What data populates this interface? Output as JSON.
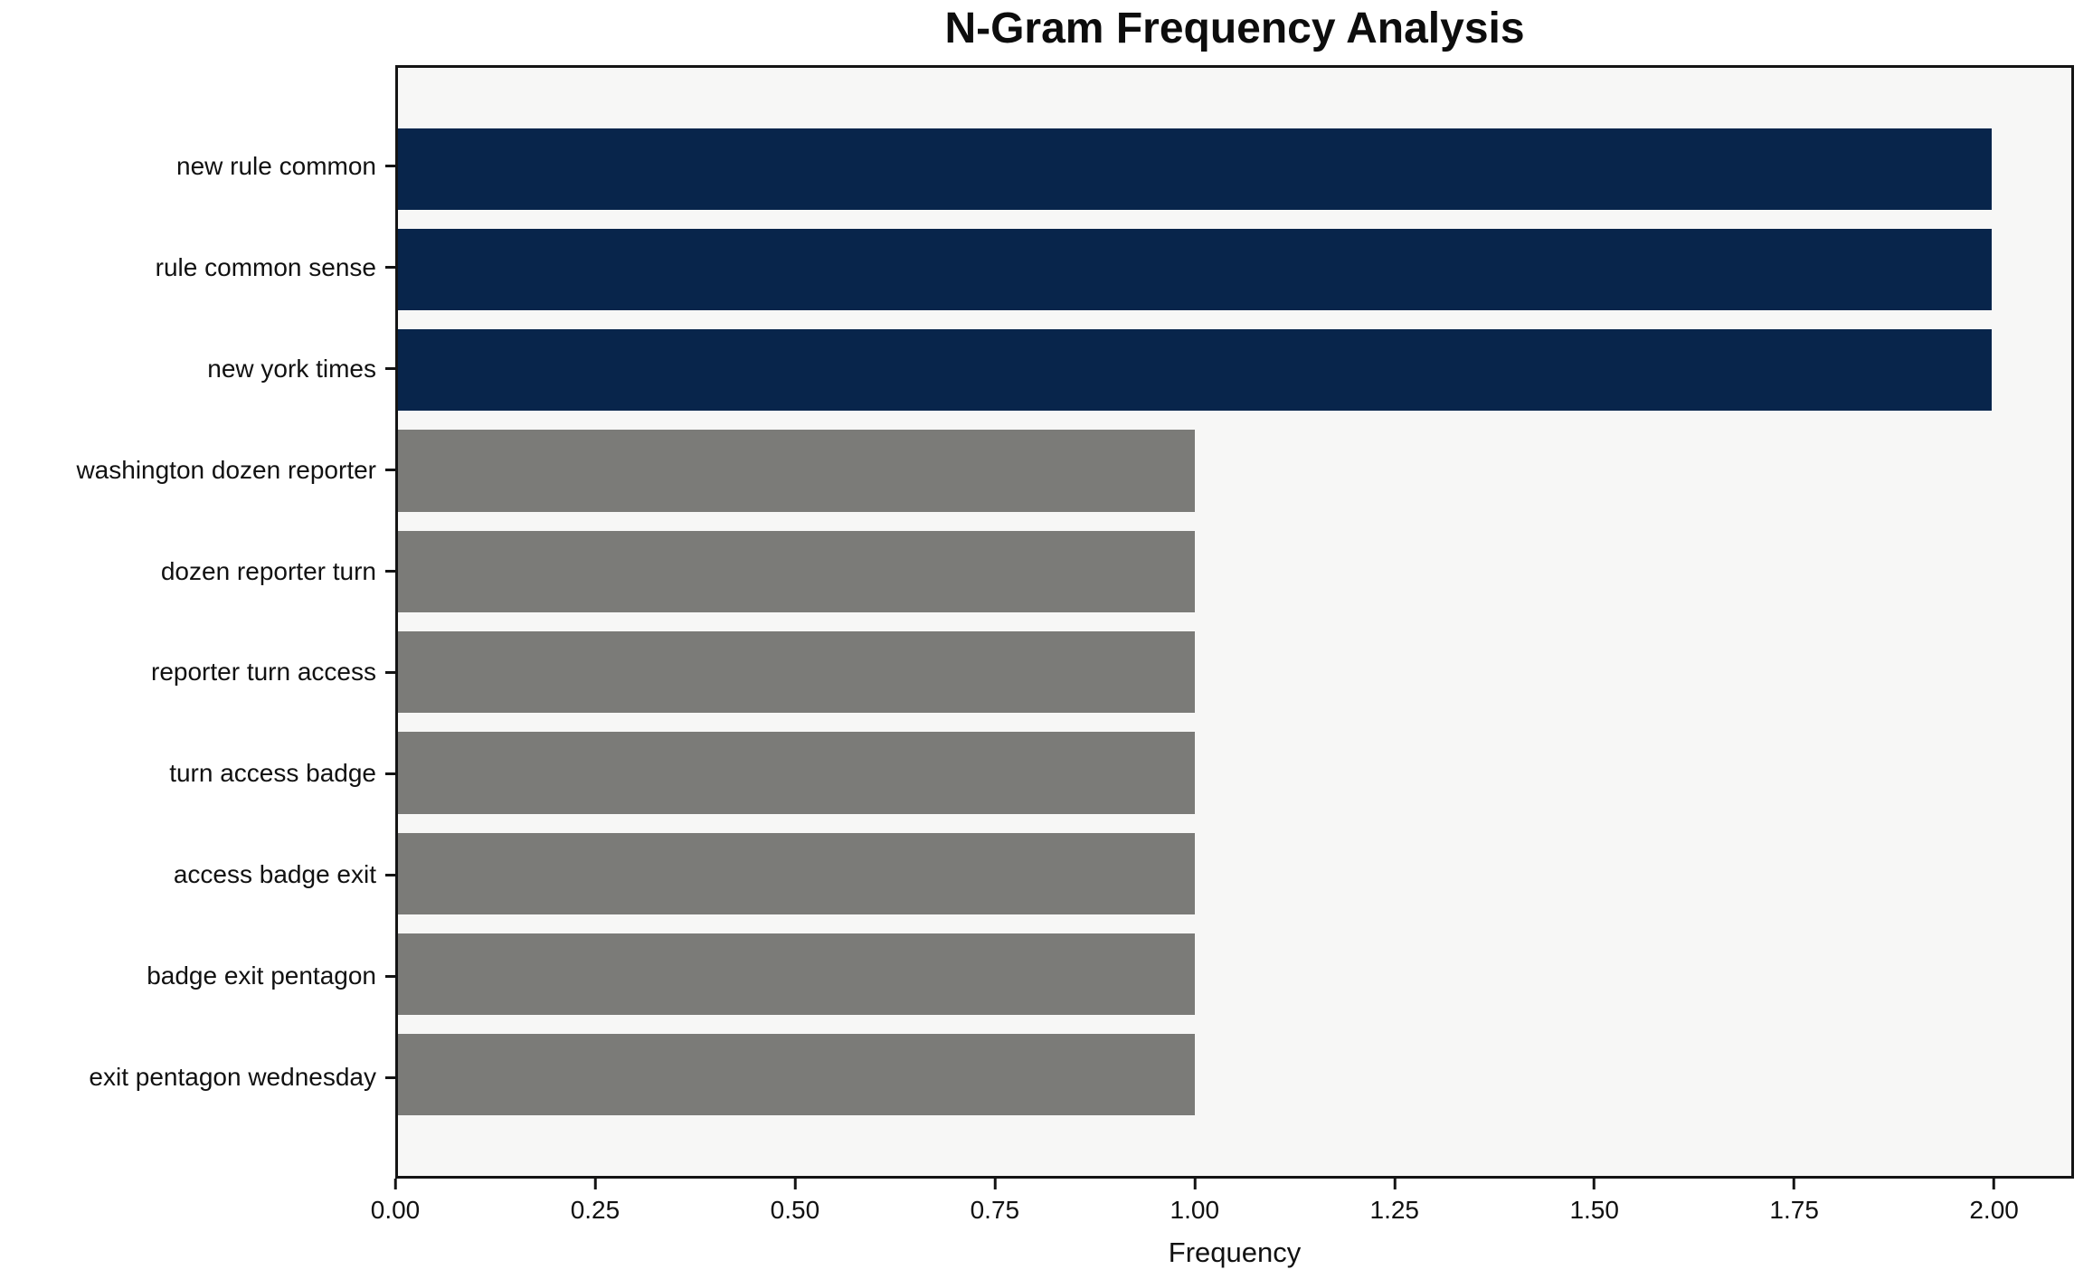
{
  "chart_data": {
    "type": "bar",
    "orientation": "horizontal",
    "title": "N-Gram Frequency Analysis",
    "xlabel": "Frequency",
    "ylabel": "",
    "categories": [
      "new rule common",
      "rule common sense",
      "new york times",
      "washington dozen reporter",
      "dozen reporter turn",
      "reporter turn access",
      "turn access badge",
      "access badge exit",
      "badge exit pentagon",
      "exit pentagon wednesday"
    ],
    "values": [
      2,
      2,
      2,
      1,
      1,
      1,
      1,
      1,
      1,
      1
    ],
    "bar_colors": [
      "#08254b",
      "#08254b",
      "#08254b",
      "#7b7b78",
      "#7b7b78",
      "#7b7b78",
      "#7b7b78",
      "#7b7b78",
      "#7b7b78",
      "#7b7b78"
    ],
    "xlim": [
      0,
      2.1
    ],
    "xtick_values": [
      0,
      0.25,
      0.5,
      0.75,
      1.0,
      1.25,
      1.5,
      1.75,
      2.0
    ],
    "xtick_labels": [
      "0.00",
      "0.25",
      "0.50",
      "0.75",
      "1.00",
      "1.25",
      "1.50",
      "1.75",
      "2.00"
    ],
    "grid": false,
    "legend": null,
    "plot_background": "#f7f7f6",
    "figure_background": "#ffffff",
    "highlight_color": "#08254b",
    "default_color": "#7b7b78"
  }
}
